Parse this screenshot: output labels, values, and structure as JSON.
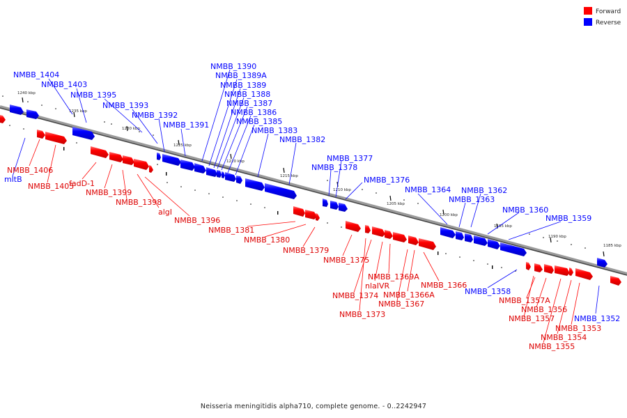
{
  "legend": {
    "forward": {
      "label": "Forward",
      "color": "#ff0000"
    },
    "reverse": {
      "label": "Reverse",
      "color": "#0000ff"
    }
  },
  "caption": "Neisseria meningitidis alpha710, complete genome. - 0..2242947",
  "scale_ticks": [
    "1240 kbp",
    "1235 kbp",
    "1230 kbp",
    "1225 kbp",
    "1220 kbp",
    "1215 kbp",
    "1210 kbp",
    "1205 kbp",
    "1200 kbp",
    "1195 kbp",
    "1190 kbp",
    "1185 kbp"
  ],
  "genes": {
    "reverse": [
      "NMBB_1404",
      "NMBB_1403",
      "NMBB_1395",
      "NMBB_1393",
      "NMBB_1392",
      "NMBB_1391",
      "NMBB_1390",
      "NMBB_1389A",
      "NMBB_1389",
      "NMBB_1388",
      "NMBB_1387",
      "NMBB_1386",
      "NMBB_1385",
      "NMBB_1383",
      "NMBB_1382",
      "NMBB_1377",
      "NMBB_1378",
      "NMBB_1376",
      "NMBB_1364",
      "NMBB_1362",
      "NMBB_1363",
      "NMBB_1360",
      "NMBB_1359",
      "NMBB_1358",
      "NMBB_1352",
      "mltB"
    ],
    "forward": [
      "NMBB_1406",
      "NMBB_1405",
      "fadD-1",
      "NMBB_1399",
      "NMBB_1398",
      "algI",
      "NMBB_1396",
      "NMBB_1381",
      "NMBB_1380",
      "NMBB_1379",
      "NMBB_1375",
      "NMBB_1369A",
      "nlaIVR",
      "NMBB_1374",
      "NMBB_1366A",
      "NMBB_1367",
      "NMBB_1373",
      "NMBB_1366",
      "NMBB_1357A",
      "NMBB_1356",
      "NMBB_1357",
      "NMBB_1353",
      "NMBB_1354",
      "NMBB_1355"
    ]
  }
}
